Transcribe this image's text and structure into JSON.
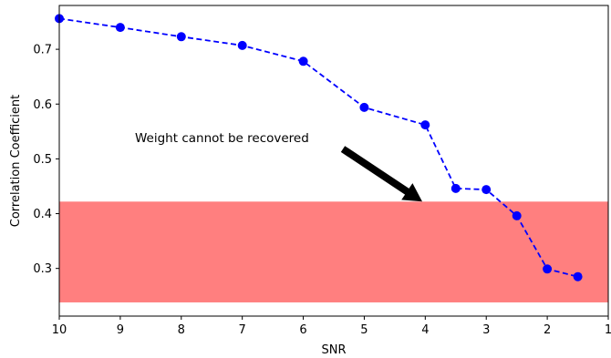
{
  "chart_data": {
    "type": "line",
    "title": "",
    "xlabel": "SNR",
    "ylabel": "Correlation Coefficient",
    "xlim": [
      10,
      1
    ],
    "ylim": [
      0.213,
      0.78
    ],
    "x_ticks": [
      "10",
      "9",
      "8",
      "7",
      "6",
      "5",
      "4",
      "3",
      "2",
      "1"
    ],
    "x_tick_values": [
      10,
      9,
      8,
      7,
      6,
      5,
      4,
      3,
      2,
      1
    ],
    "y_ticks": [
      "0.3",
      "0.4",
      "0.5",
      "0.6",
      "0.7"
    ],
    "y_tick_values": [
      0.3,
      0.4,
      0.5,
      0.6,
      0.7
    ],
    "grid": false,
    "series": [
      {
        "x": [
          10,
          9,
          8,
          7,
          6,
          5,
          4,
          3.5,
          3,
          2.5,
          2,
          1.5
        ],
        "y": [
          0.756,
          0.74,
          0.723,
          0.707,
          0.678,
          0.594,
          0.562,
          0.446,
          0.444,
          0.396,
          0.299,
          0.285
        ],
        "color": "#0000ff",
        "linestyle": "dashed",
        "marker": "circle"
      }
    ],
    "shaded_band": {
      "y_min": 0.238,
      "y_max": 0.422,
      "color": "#ff0000",
      "opacity": 0.5
    },
    "annotation": {
      "text": "Weight cannot be recovered",
      "xy": [
        4.05,
        0.422
      ],
      "xytext": [
        5.35,
        0.518
      ],
      "arrow_color": "#000000"
    }
  }
}
